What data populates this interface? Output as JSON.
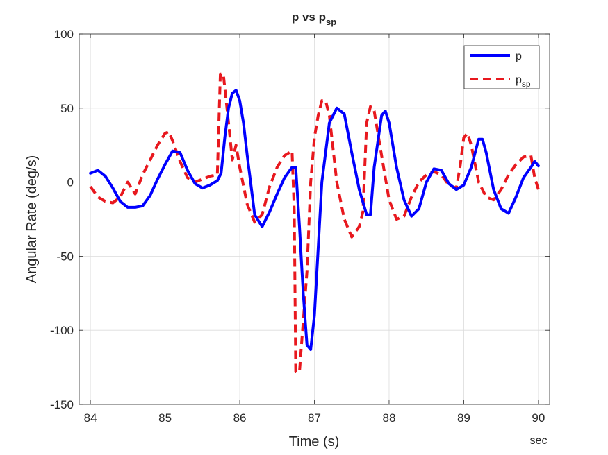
{
  "chart_data": {
    "type": "line",
    "title": {
      "main": "p vs p",
      "sub": "sp"
    },
    "xlabel": "Time (s)",
    "ylabel": "Angular Rate (deg/s)",
    "x_unit_label": "sec",
    "xlim": [
      83.85,
      90.15
    ],
    "ylim": [
      -150,
      100
    ],
    "xticks": [
      "84",
      "85",
      "86",
      "87",
      "88",
      "89",
      "90"
    ],
    "yticks": [
      "-150",
      "-100",
      "-50",
      "0",
      "50",
      "100"
    ],
    "grid": true,
    "legend_position": "top-right",
    "series": [
      {
        "name": "p",
        "color": "#0000ff",
        "style": "solid",
        "points": [
          [
            84.0,
            6
          ],
          [
            84.1,
            8
          ],
          [
            84.2,
            4
          ],
          [
            84.3,
            -4
          ],
          [
            84.4,
            -13
          ],
          [
            84.5,
            -17
          ],
          [
            84.6,
            -17
          ],
          [
            84.7,
            -16
          ],
          [
            84.8,
            -9
          ],
          [
            84.9,
            2
          ],
          [
            85.0,
            12
          ],
          [
            85.1,
            21
          ],
          [
            85.2,
            20
          ],
          [
            85.3,
            8
          ],
          [
            85.4,
            -1
          ],
          [
            85.5,
            -4
          ],
          [
            85.6,
            -2
          ],
          [
            85.7,
            1
          ],
          [
            85.75,
            6
          ],
          [
            85.8,
            30
          ],
          [
            85.85,
            50
          ],
          [
            85.9,
            60
          ],
          [
            85.95,
            62
          ],
          [
            86.0,
            55
          ],
          [
            86.05,
            40
          ],
          [
            86.1,
            18
          ],
          [
            86.15,
            -2
          ],
          [
            86.2,
            -22
          ],
          [
            86.3,
            -30
          ],
          [
            86.4,
            -20
          ],
          [
            86.5,
            -8
          ],
          [
            86.6,
            3
          ],
          [
            86.7,
            10
          ],
          [
            86.75,
            10
          ],
          [
            86.8,
            -30
          ],
          [
            86.85,
            -75
          ],
          [
            86.9,
            -110
          ],
          [
            86.95,
            -113
          ],
          [
            87.0,
            -90
          ],
          [
            87.05,
            -45
          ],
          [
            87.1,
            0
          ],
          [
            87.2,
            40
          ],
          [
            87.3,
            50
          ],
          [
            87.4,
            46
          ],
          [
            87.5,
            20
          ],
          [
            87.6,
            -5
          ],
          [
            87.7,
            -22
          ],
          [
            87.75,
            -22
          ],
          [
            87.8,
            10
          ],
          [
            87.9,
            45
          ],
          [
            87.95,
            48
          ],
          [
            88.0,
            40
          ],
          [
            88.1,
            10
          ],
          [
            88.2,
            -12
          ],
          [
            88.3,
            -23
          ],
          [
            88.4,
            -18
          ],
          [
            88.5,
            0
          ],
          [
            88.6,
            9
          ],
          [
            88.7,
            8
          ],
          [
            88.8,
            -1
          ],
          [
            88.9,
            -5
          ],
          [
            89.0,
            -2
          ],
          [
            89.1,
            10
          ],
          [
            89.2,
            29
          ],
          [
            89.25,
            29
          ],
          [
            89.3,
            20
          ],
          [
            89.4,
            -5
          ],
          [
            89.5,
            -18
          ],
          [
            89.6,
            -21
          ],
          [
            89.7,
            -10
          ],
          [
            89.8,
            3
          ],
          [
            89.9,
            10
          ],
          [
            89.95,
            14
          ],
          [
            90.0,
            11
          ]
        ]
      },
      {
        "name": "p",
        "name_sub": "sp",
        "color": "#e8181e",
        "style": "dashed",
        "points": [
          [
            84.0,
            -3
          ],
          [
            84.1,
            -10
          ],
          [
            84.2,
            -13
          ],
          [
            84.3,
            -14
          ],
          [
            84.4,
            -10
          ],
          [
            84.5,
            0
          ],
          [
            84.6,
            -8
          ],
          [
            84.7,
            5
          ],
          [
            84.8,
            15
          ],
          [
            84.9,
            25
          ],
          [
            85.0,
            33
          ],
          [
            85.05,
            34
          ],
          [
            85.1,
            28
          ],
          [
            85.2,
            14
          ],
          [
            85.3,
            3
          ],
          [
            85.4,
            0
          ],
          [
            85.5,
            2
          ],
          [
            85.6,
            4
          ],
          [
            85.7,
            5
          ],
          [
            85.72,
            40
          ],
          [
            85.74,
            73
          ],
          [
            85.78,
            73
          ],
          [
            85.85,
            40
          ],
          [
            85.9,
            15
          ],
          [
            85.95,
            25
          ],
          [
            86.0,
            10
          ],
          [
            86.1,
            -15
          ],
          [
            86.2,
            -27
          ],
          [
            86.3,
            -22
          ],
          [
            86.4,
            -3
          ],
          [
            86.5,
            10
          ],
          [
            86.6,
            18
          ],
          [
            86.7,
            21
          ],
          [
            86.73,
            -20
          ],
          [
            86.75,
            -128
          ],
          [
            86.8,
            -128
          ],
          [
            86.9,
            -60
          ],
          [
            86.95,
            0
          ],
          [
            87.0,
            30
          ],
          [
            87.05,
            45
          ],
          [
            87.1,
            55
          ],
          [
            87.15,
            55
          ],
          [
            87.2,
            45
          ],
          [
            87.3,
            0
          ],
          [
            87.4,
            -25
          ],
          [
            87.5,
            -37
          ],
          [
            87.6,
            -30
          ],
          [
            87.65,
            -20
          ],
          [
            87.7,
            40
          ],
          [
            87.75,
            51
          ],
          [
            87.8,
            48
          ],
          [
            87.9,
            18
          ],
          [
            88.0,
            -12
          ],
          [
            88.1,
            -25
          ],
          [
            88.2,
            -23
          ],
          [
            88.3,
            -10
          ],
          [
            88.4,
            0
          ],
          [
            88.5,
            5
          ],
          [
            88.6,
            7
          ],
          [
            88.7,
            5
          ],
          [
            88.8,
            -2
          ],
          [
            88.9,
            -4
          ],
          [
            88.95,
            10
          ],
          [
            89.0,
            30
          ],
          [
            89.05,
            33
          ],
          [
            89.1,
            25
          ],
          [
            89.2,
            0
          ],
          [
            89.3,
            -10
          ],
          [
            89.4,
            -12
          ],
          [
            89.5,
            -5
          ],
          [
            89.6,
            5
          ],
          [
            89.7,
            12
          ],
          [
            89.8,
            17
          ],
          [
            89.9,
            18
          ],
          [
            89.95,
            3
          ],
          [
            90.0,
            -5
          ]
        ]
      }
    ]
  }
}
